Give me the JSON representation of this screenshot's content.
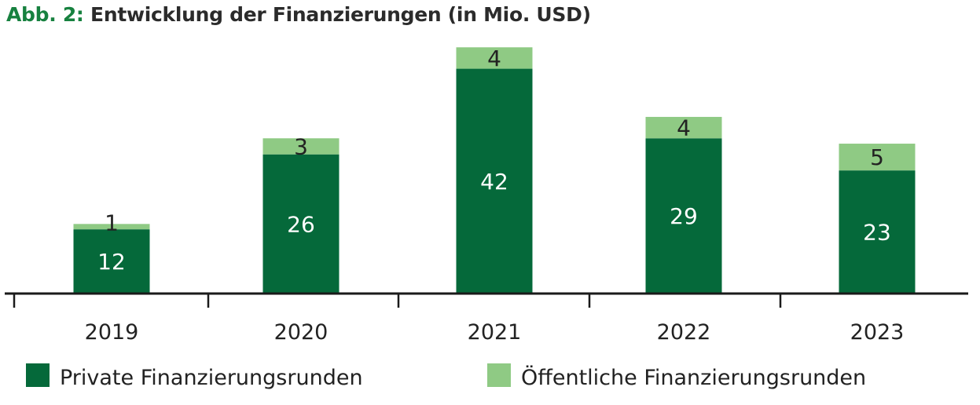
{
  "title": {
    "prefix": "Abb. 2:",
    "text": "Entwicklung der Finanzierungen (in Mio. USD)"
  },
  "chart_data": {
    "type": "bar",
    "stacked": true,
    "title": "Abb. 2: Entwicklung der Finanzierungen (in Mio. USD)",
    "categories": [
      "2019",
      "2020",
      "2021",
      "2022",
      "2023"
    ],
    "series": [
      {
        "name": "Private Finanzierungsrunden",
        "values": [
          12,
          26,
          42,
          29,
          23
        ],
        "color": "#05693a"
      },
      {
        "name": "Öffentliche Finanzierungsrunden",
        "values": [
          1,
          3,
          4,
          4,
          5
        ],
        "color": "#8fca84"
      }
    ],
    "xlabel": "",
    "ylabel": "",
    "ylim": [
      0,
      46
    ],
    "grid": false,
    "legend": "bottom",
    "data_labels": true
  }
}
